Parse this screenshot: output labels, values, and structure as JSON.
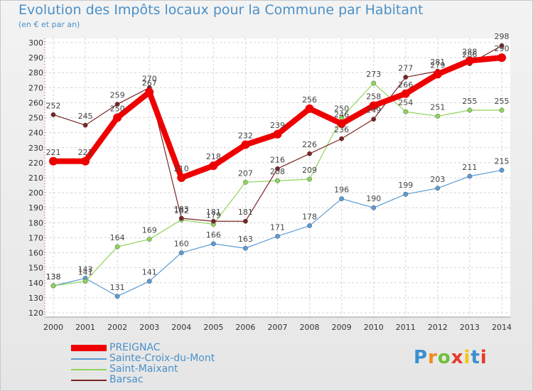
{
  "title": "Evolution des Impôts locaux pour la Commune par Habitant",
  "subtitle": "(en € et par an)",
  "logo": {
    "text": "Proxiti",
    "colors": [
      "#3a8fd0",
      "#f08a1c",
      "#6fbf3a",
      "#e63a2a",
      "#f5c518",
      "#3a8fd0",
      "#e63a2a"
    ]
  },
  "chart_data": {
    "type": "line",
    "x": [
      "2000",
      "2001",
      "2002",
      "2003",
      "2004",
      "2005",
      "2006",
      "2007",
      "2008",
      "2009",
      "2010",
      "2011",
      "2012",
      "2013",
      "2014"
    ],
    "ylim": [
      120,
      300
    ],
    "yticks": [
      120,
      130,
      140,
      150,
      160,
      170,
      180,
      190,
      200,
      210,
      220,
      230,
      240,
      250,
      260,
      270,
      280,
      290,
      300
    ],
    "grid": true,
    "legend_position": "bottom-left",
    "series": [
      {
        "name": "PREIGNAC",
        "color": "#ee0000",
        "width": 8,
        "values": [
          221,
          221,
          250,
          267,
          210,
          218,
          232,
          239,
          256,
          246,
          258,
          266,
          279,
          288,
          290
        ],
        "labels": [
          "221",
          "221",
          "250",
          "267",
          "210",
          "218",
          "232",
          "239",
          "256",
          "246",
          "258",
          "266",
          "279",
          "288",
          "290"
        ]
      },
      {
        "name": "Sainte-Croix-du-Mont",
        "color": "#5b9bd5",
        "width": 1.2,
        "values": [
          138,
          143,
          131,
          141,
          160,
          166,
          163,
          171,
          178,
          196,
          190,
          199,
          203,
          211,
          215
        ],
        "labels": [
          "138",
          "143",
          "131",
          "141",
          "160",
          "166",
          "163",
          "171",
          "178",
          "196",
          "190",
          "199",
          "203",
          "211",
          "215"
        ]
      },
      {
        "name": "Saint-Maixant",
        "color": "#8ed45a",
        "width": 1.2,
        "values": [
          138,
          141,
          164,
          169,
          182,
          179,
          207,
          208,
          209,
          250,
          273,
          254,
          251,
          255,
          255
        ],
        "labels": [
          "138",
          "141",
          "164",
          "169",
          "182",
          "179",
          "207",
          "208",
          "209",
          "250",
          "273",
          "254",
          "251",
          "255",
          "255"
        ]
      },
      {
        "name": "Barsac",
        "color": "#7a2525",
        "width": 1.2,
        "values": [
          252,
          245,
          259,
          270,
          183,
          181,
          181,
          216,
          226,
          236,
          249,
          277,
          281,
          286,
          298
        ],
        "labels": [
          "252",
          "245",
          "259",
          "270",
          "183",
          "181",
          "181",
          "216",
          "226",
          "236",
          "249",
          "277",
          "281",
          "286",
          "298"
        ]
      }
    ]
  }
}
